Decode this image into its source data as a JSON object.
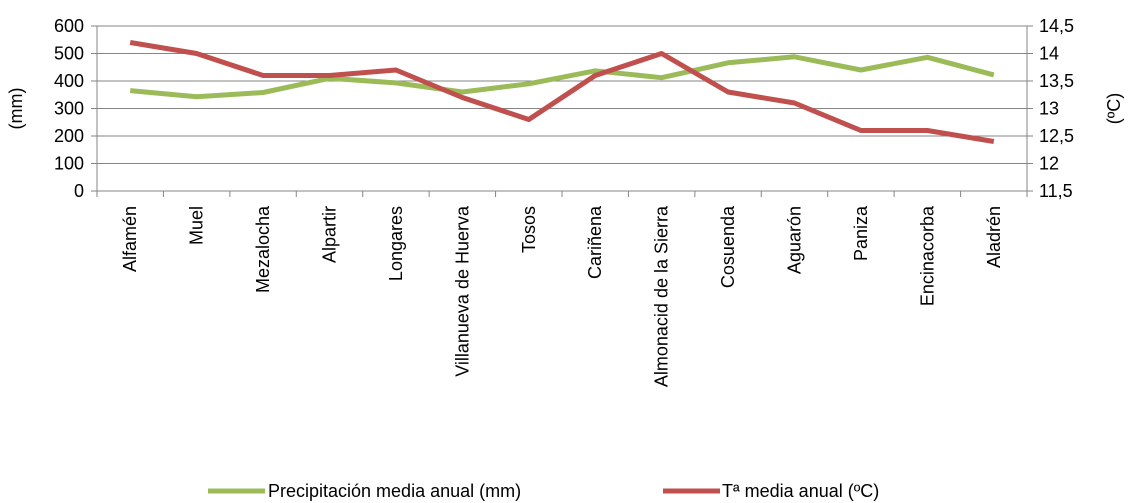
{
  "chart_data": {
    "type": "line",
    "categories": [
      "Alfamén",
      "Muel",
      "Mezalocha",
      "Alpartir",
      "Longares",
      "Villanueva de Huerva",
      "Tosos",
      "Cariñena",
      "Almonacid de la Sierra",
      "Cosuenda",
      "Aguarón",
      "Paniza",
      "Encinacorba",
      "Aladrén"
    ],
    "series": [
      {
        "name": "Precipitación media anual (mm)",
        "axis": "left",
        "color": "#9bbb59",
        "values": [
          365,
          343,
          358,
          410,
          393,
          360,
          390,
          437,
          412,
          466,
          488,
          440,
          486,
          422
        ]
      },
      {
        "name": "Tª media anual (ºC)",
        "axis": "right",
        "color": "#c0504d",
        "values": [
          14.2,
          14.0,
          13.6,
          13.6,
          13.7,
          13.2,
          12.8,
          13.6,
          14.0,
          13.3,
          13.1,
          12.6,
          12.6,
          12.4
        ]
      }
    ],
    "ylabel": "(mm)",
    "y2label": "(ºC)",
    "ylim": [
      0,
      600
    ],
    "y2lim": [
      11.5,
      14.5
    ],
    "yticks": [
      "0",
      "100",
      "200",
      "300",
      "400",
      "500",
      "600"
    ],
    "y2ticks": [
      "11,5",
      "12",
      "12,5",
      "13",
      "13,5",
      "14",
      "14,5"
    ],
    "grid": "horizontal",
    "legend_position": "bottom"
  }
}
